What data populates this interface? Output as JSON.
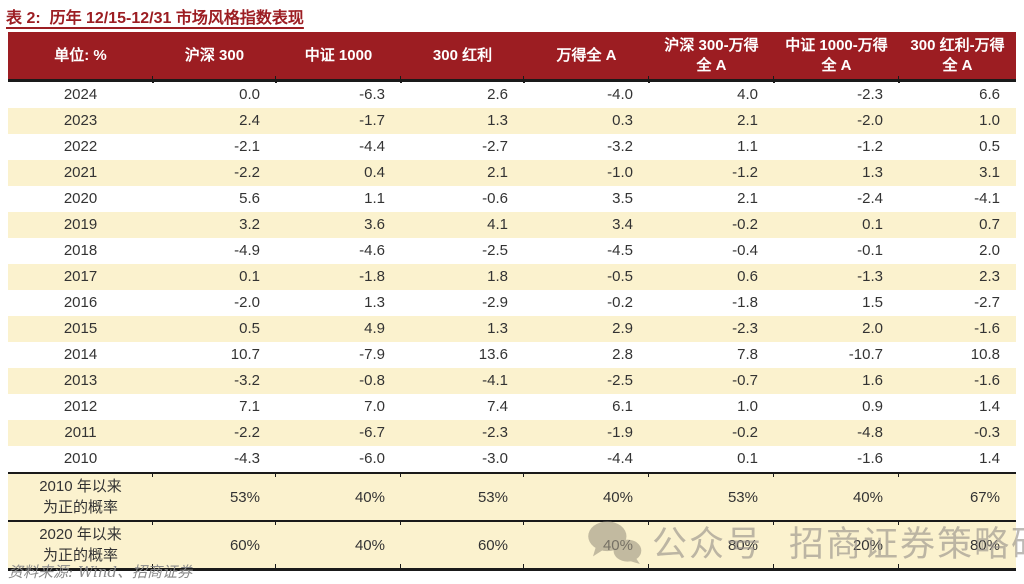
{
  "title": "表 2:  历年 12/15-12/31 市场风格指数表现",
  "table": {
    "unit_label": "单位: %",
    "columns": [
      "沪深 300",
      "中证 1000",
      "300 红利",
      "万得全 A",
      "沪深 300-万得全 A",
      "中证 1000-万得全 A",
      "300 红利-万得全 A"
    ],
    "rows": [
      {
        "label": "2024",
        "values": [
          "0.0",
          "-6.3",
          "2.6",
          "-4.0",
          "4.0",
          "-2.3",
          "6.6"
        ]
      },
      {
        "label": "2023",
        "values": [
          "2.4",
          "-1.7",
          "1.3",
          "0.3",
          "2.1",
          "-2.0",
          "1.0"
        ]
      },
      {
        "label": "2022",
        "values": [
          "-2.1",
          "-4.4",
          "-2.7",
          "-3.2",
          "1.1",
          "-1.2",
          "0.5"
        ]
      },
      {
        "label": "2021",
        "values": [
          "-2.2",
          "0.4",
          "2.1",
          "-1.0",
          "-1.2",
          "1.3",
          "3.1"
        ]
      },
      {
        "label": "2020",
        "values": [
          "5.6",
          "1.1",
          "-0.6",
          "3.5",
          "2.1",
          "-2.4",
          "-4.1"
        ]
      },
      {
        "label": "2019",
        "values": [
          "3.2",
          "3.6",
          "4.1",
          "3.4",
          "-0.2",
          "0.1",
          "0.7"
        ]
      },
      {
        "label": "2018",
        "values": [
          "-4.9",
          "-4.6",
          "-2.5",
          "-4.5",
          "-0.4",
          "-0.1",
          "2.0"
        ]
      },
      {
        "label": "2017",
        "values": [
          "0.1",
          "-1.8",
          "1.8",
          "-0.5",
          "0.6",
          "-1.3",
          "2.3"
        ]
      },
      {
        "label": "2016",
        "values": [
          "-2.0",
          "1.3",
          "-2.9",
          "-0.2",
          "-1.8",
          "1.5",
          "-2.7"
        ]
      },
      {
        "label": "2015",
        "values": [
          "0.5",
          "4.9",
          "1.3",
          "2.9",
          "-2.3",
          "2.0",
          "-1.6"
        ]
      },
      {
        "label": "2014",
        "values": [
          "10.7",
          "-7.9",
          "13.6",
          "2.8",
          "7.8",
          "-10.7",
          "10.8"
        ]
      },
      {
        "label": "2013",
        "values": [
          "-3.2",
          "-0.8",
          "-4.1",
          "-2.5",
          "-0.7",
          "1.6",
          "-1.6"
        ]
      },
      {
        "label": "2012",
        "values": [
          "7.1",
          "7.0",
          "7.4",
          "6.1",
          "1.0",
          "0.9",
          "1.4"
        ]
      },
      {
        "label": "2011",
        "values": [
          "-2.2",
          "-6.7",
          "-2.3",
          "-1.9",
          "-0.2",
          "-4.8",
          "-0.3"
        ]
      },
      {
        "label": "2010",
        "values": [
          "-4.3",
          "-6.0",
          "-3.0",
          "-4.4",
          "0.1",
          "-1.6",
          "1.4"
        ]
      }
    ],
    "summary_rows": [
      {
        "label_lines": [
          "2010 年以来",
          "为正的概率"
        ],
        "values": [
          "53%",
          "40%",
          "53%",
          "40%",
          "53%",
          "40%",
          "67%"
        ]
      },
      {
        "label_lines": [
          "2020 年以来",
          "为正的概率"
        ],
        "values": [
          "60%",
          "40%",
          "60%",
          "40%",
          "80%",
          "20%",
          "80%"
        ]
      }
    ]
  },
  "source": "资料来源: Wind、招商证券",
  "watermark": {
    "icon": "wechat-icon",
    "label1": "公众号",
    "label2": "招商证券策略研究"
  },
  "colors": {
    "header_bg": "#9C1D22",
    "title_color": "#9C1D22",
    "row_alt_bg": "#FBF2CE",
    "border_color": "#1A1A1A",
    "text_color": "#333333",
    "source_color": "#8A8A8A",
    "watermark_color": "#96908A"
  }
}
